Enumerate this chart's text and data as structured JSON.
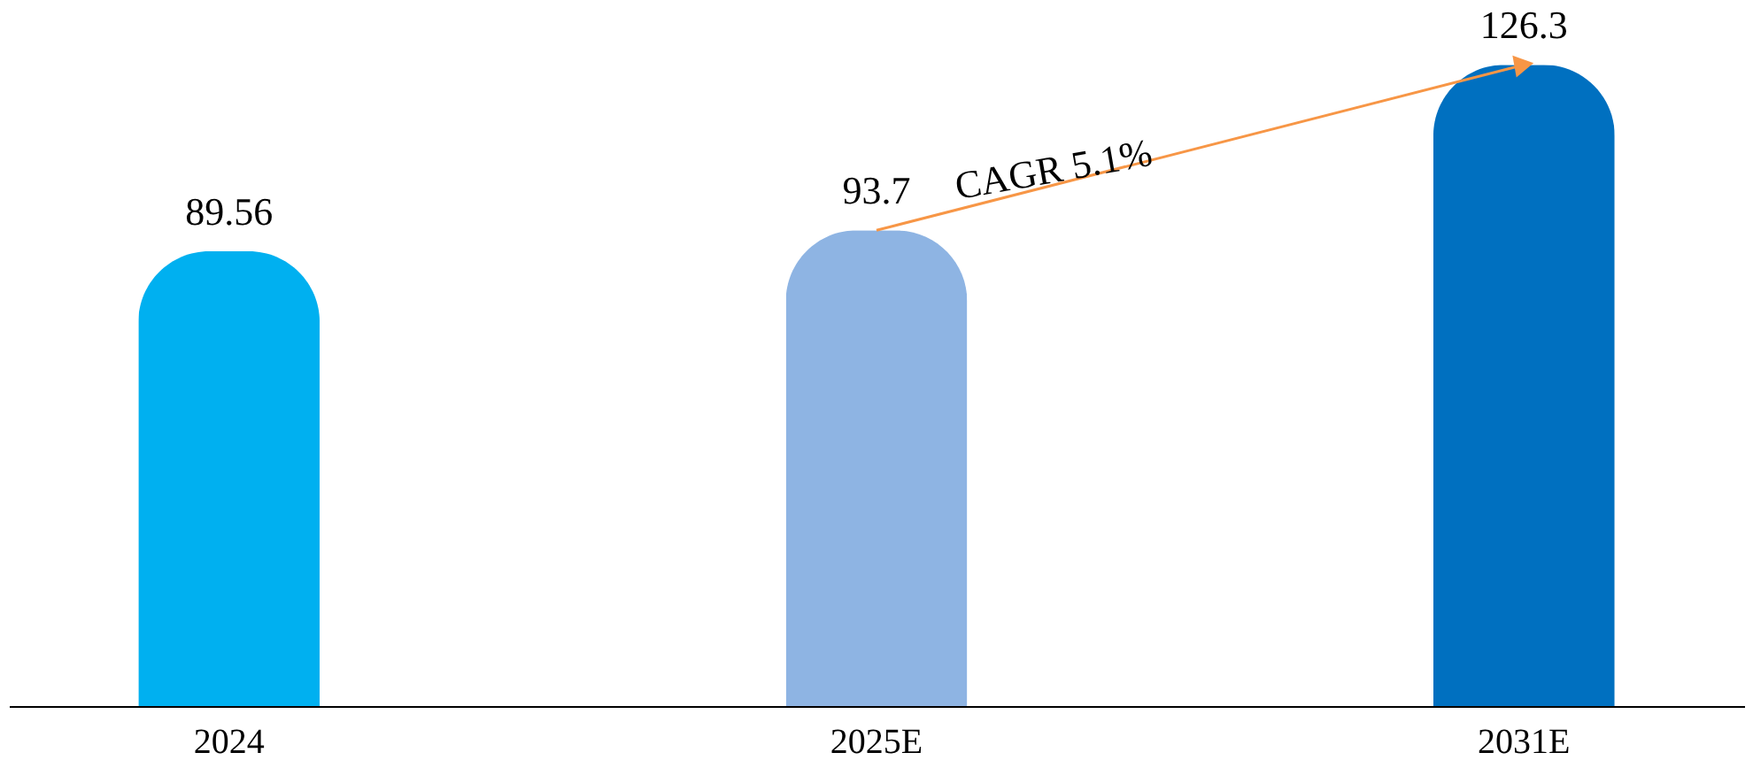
{
  "chart_data": {
    "type": "bar",
    "categories": [
      "2024",
      "2025E",
      "2031E"
    ],
    "values": [
      89.56,
      93.7,
      126.3
    ],
    "colors": [
      "#00b0f0",
      "#8eb4e3",
      "#0070c0"
    ],
    "data_labels": true,
    "annotations": [
      "CAGR 5.1%"
    ]
  }
}
